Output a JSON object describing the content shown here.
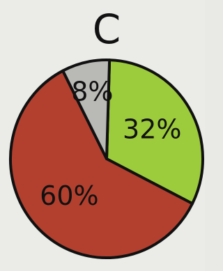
{
  "chart_data": {
    "type": "pie",
    "title": "C",
    "values": [
      32,
      60,
      8
    ],
    "value_labels": [
      "32%",
      "60%",
      "8%"
    ],
    "colors": [
      "#9ccb3b",
      "#b3402f",
      "#b9b9b6"
    ]
  }
}
